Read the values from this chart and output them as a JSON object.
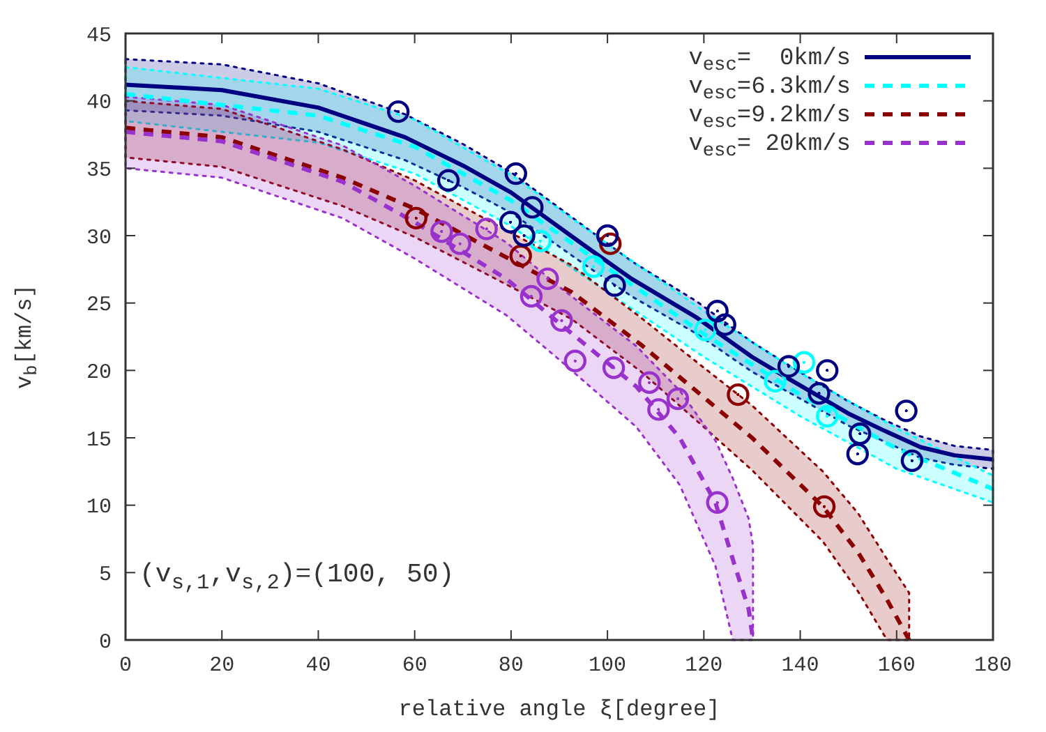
{
  "chart_data": {
    "type": "line",
    "xlabel": "relative angle ξ[degree]",
    "ylabel": "v$_{b}$[km/s]",
    "annotations": [
      "(v$_{s,1}$,v$_{s,2}$)=(100, 50)"
    ],
    "xlim": [
      0,
      180
    ],
    "xticks": [
      0,
      20,
      40,
      60,
      80,
      100,
      120,
      140,
      160,
      180
    ],
    "ylim": [
      0,
      45
    ],
    "yticks": [
      0,
      5,
      10,
      15,
      20,
      25,
      30,
      35,
      40,
      45
    ],
    "grid": false,
    "legend": "top right",
    "series": [
      {
        "name": "v$_{esc}$=  0km/s",
        "color": "#000080",
        "line_style": "solid",
        "x": [
          0,
          20,
          40,
          58,
          70,
          80,
          95.5,
          105,
          118.6,
          130,
          138,
          150,
          157,
          165,
          172,
          180
        ],
        "values": [
          41.2,
          40.8,
          39.5,
          37.3,
          35.2,
          33.2,
          29.2,
          26.8,
          23.9,
          21,
          19.3,
          16.8,
          15.6,
          14.3,
          13.7,
          13.4
        ],
        "lower": [
          39.3,
          38.9,
          37.7,
          35.6,
          33.6,
          31.7,
          27.8,
          25.5,
          22.7,
          19.9,
          18.3,
          15.9,
          14.8,
          13.5,
          13.0,
          12.7
        ],
        "upper": [
          43.1,
          42.7,
          41.3,
          39.0,
          36.8,
          34.7,
          30.6,
          28.1,
          25.1,
          22.1,
          20.3,
          17.7,
          16.4,
          15.1,
          14.4,
          14.1
        ]
      },
      {
        "name": "v$_{esc}$=6.3km/s",
        "color": "#00ffff",
        "line_style": "dashed",
        "x": [
          0,
          40,
          60,
          80,
          100,
          120,
          140,
          160,
          180
        ],
        "values": [
          40.5,
          38.9,
          36.6,
          32.6,
          27.6,
          22.7,
          18.2,
          14.2,
          11.2
        ],
        "lower": [
          38.5,
          36.9,
          34.6,
          30.7,
          25.8,
          21.0,
          16.6,
          12.7,
          10.2
        ],
        "upper": [
          42.5,
          40.9,
          38.6,
          34.5,
          29.4,
          24.4,
          19.8,
          15.7,
          12.2
        ]
      },
      {
        "name": "v$_{esc}$=9.2km/s",
        "color": "#8b0000",
        "line_style": "dashed",
        "x": [
          0,
          20,
          45,
          60,
          80,
          92.6,
          107,
          120,
          130,
          144.7,
          152,
          158,
          162.6
        ],
        "values": [
          38,
          37.3,
          34.3,
          32,
          28.2,
          25.8,
          21.9,
          18,
          15,
          9.9,
          6.5,
          3,
          0
        ],
        "lower": [
          35.8,
          35.1,
          32.2,
          29.9,
          26.2,
          23.8,
          19.9,
          15.8,
          12.6,
          7.3,
          3.6,
          0,
          0
        ],
        "upper": [
          40.0,
          39.4,
          36.4,
          34.1,
          30.2,
          27.8,
          23.9,
          20.2,
          17.4,
          12.5,
          9.4,
          6,
          3.5
        ]
      },
      {
        "name": "v$_{esc}$= 20km/s",
        "color": "#9932cc",
        "line_style": "dashed",
        "x": [
          0,
          20,
          45,
          60,
          79,
          90,
          106,
          115,
          122.4,
          126,
          129.3,
          130.2
        ],
        "values": [
          37.7,
          37,
          34,
          31,
          26.8,
          23.5,
          18.8,
          15,
          10.2,
          6,
          2.3,
          0
        ],
        "lower": [
          35.0,
          34.3,
          31.3,
          28.3,
          24.1,
          20.8,
          15.8,
          11.5,
          5.5,
          0,
          0,
          0
        ],
        "upper": [
          40.3,
          39.7,
          36.7,
          33.7,
          29.5,
          26.2,
          21.8,
          18.5,
          14.8,
          12,
          9,
          7
        ]
      },
      {
        "type": "scatter",
        "color": "#000080",
        "marker": "circle",
        "x": [
          56.6,
          67.0,
          81.0,
          84.4,
          79.9,
          82.7,
          100.0,
          101.5,
          122.8,
          124.4,
          137.6,
          145.6,
          143.9,
          152.4,
          151.9,
          162.0,
          163.2
        ],
        "values": [
          39.2,
          34.1,
          34.6,
          32.1,
          31.0,
          30.0,
          30.0,
          26.3,
          24.4,
          23.4,
          20.3,
          20.0,
          18.3,
          15.3,
          13.8,
          17.0,
          13.3
        ]
      },
      {
        "type": "scatter",
        "color": "#00ffff",
        "marker": "circle",
        "x": [
          86.1,
          97.1,
          120.3,
          134.8,
          140.8,
          145.6
        ],
        "values": [
          29.6,
          27.7,
          23.0,
          19.2,
          20.6,
          16.6
        ]
      },
      {
        "type": "scatter",
        "color": "#8b0000",
        "marker": "circle",
        "x": [
          60.3,
          82.0,
          100.6,
          127.1,
          145.0
        ],
        "values": [
          31.3,
          28.5,
          29.4,
          18.2,
          9.9
        ]
      },
      {
        "type": "scatter",
        "color": "#9932cc",
        "marker": "circle",
        "x": [
          65.6,
          69.4,
          74.9,
          87.6,
          84.2,
          90.5,
          93.3,
          101.3,
          108.7,
          114.6,
          110.6,
          122.8
        ],
        "values": [
          30.3,
          29.4,
          30.5,
          26.8,
          25.5,
          23.7,
          20.7,
          20.2,
          19.1,
          17.9,
          17.1,
          10.2
        ]
      }
    ]
  }
}
